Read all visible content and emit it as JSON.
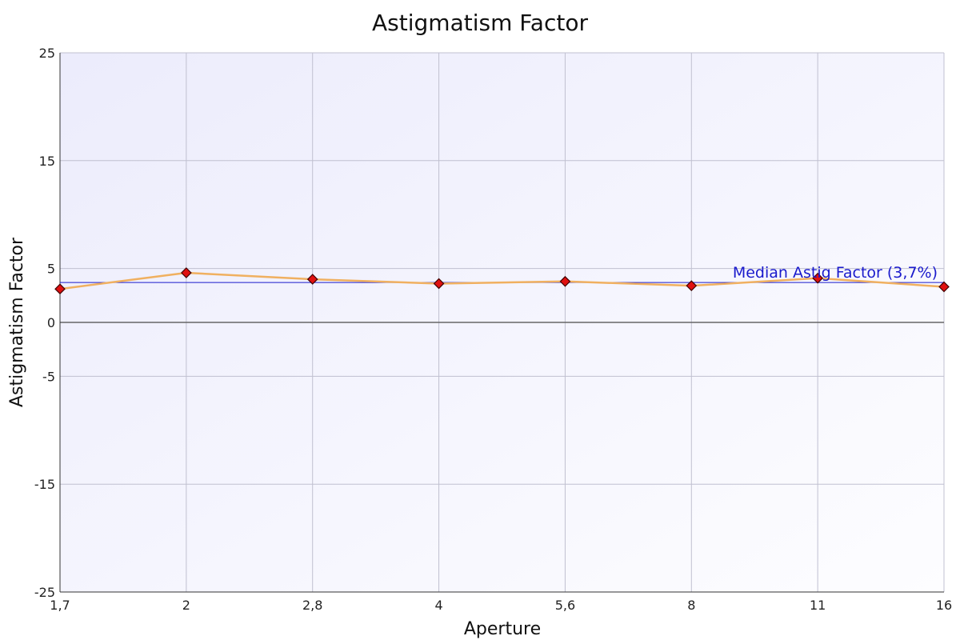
{
  "chart_data": {
    "type": "line",
    "title": "Astigmatism Factor",
    "xlabel": "Aperture",
    "ylabel": "Astigmatism Factor",
    "categories": [
      "1,7",
      "2",
      "2,8",
      "4",
      "5,6",
      "8",
      "11",
      "16"
    ],
    "series": [
      {
        "values": [
          3.1,
          4.6,
          4.0,
          3.6,
          3.8,
          3.4,
          4.1,
          3.3
        ]
      }
    ],
    "ylim": [
      -25,
      25
    ],
    "yticks": [
      -25,
      -15,
      -5,
      0,
      5,
      15,
      25
    ],
    "grid": true,
    "median_line": {
      "value": 3.7,
      "label": "Median Astig Factor (3,7%)"
    },
    "colors": {
      "line": "#f0b060",
      "marker_fill": "#e01010",
      "marker_stroke": "#400000",
      "median": "#1a1acc",
      "zero_line": "#666666",
      "grid": "#c0c0d0"
    }
  }
}
